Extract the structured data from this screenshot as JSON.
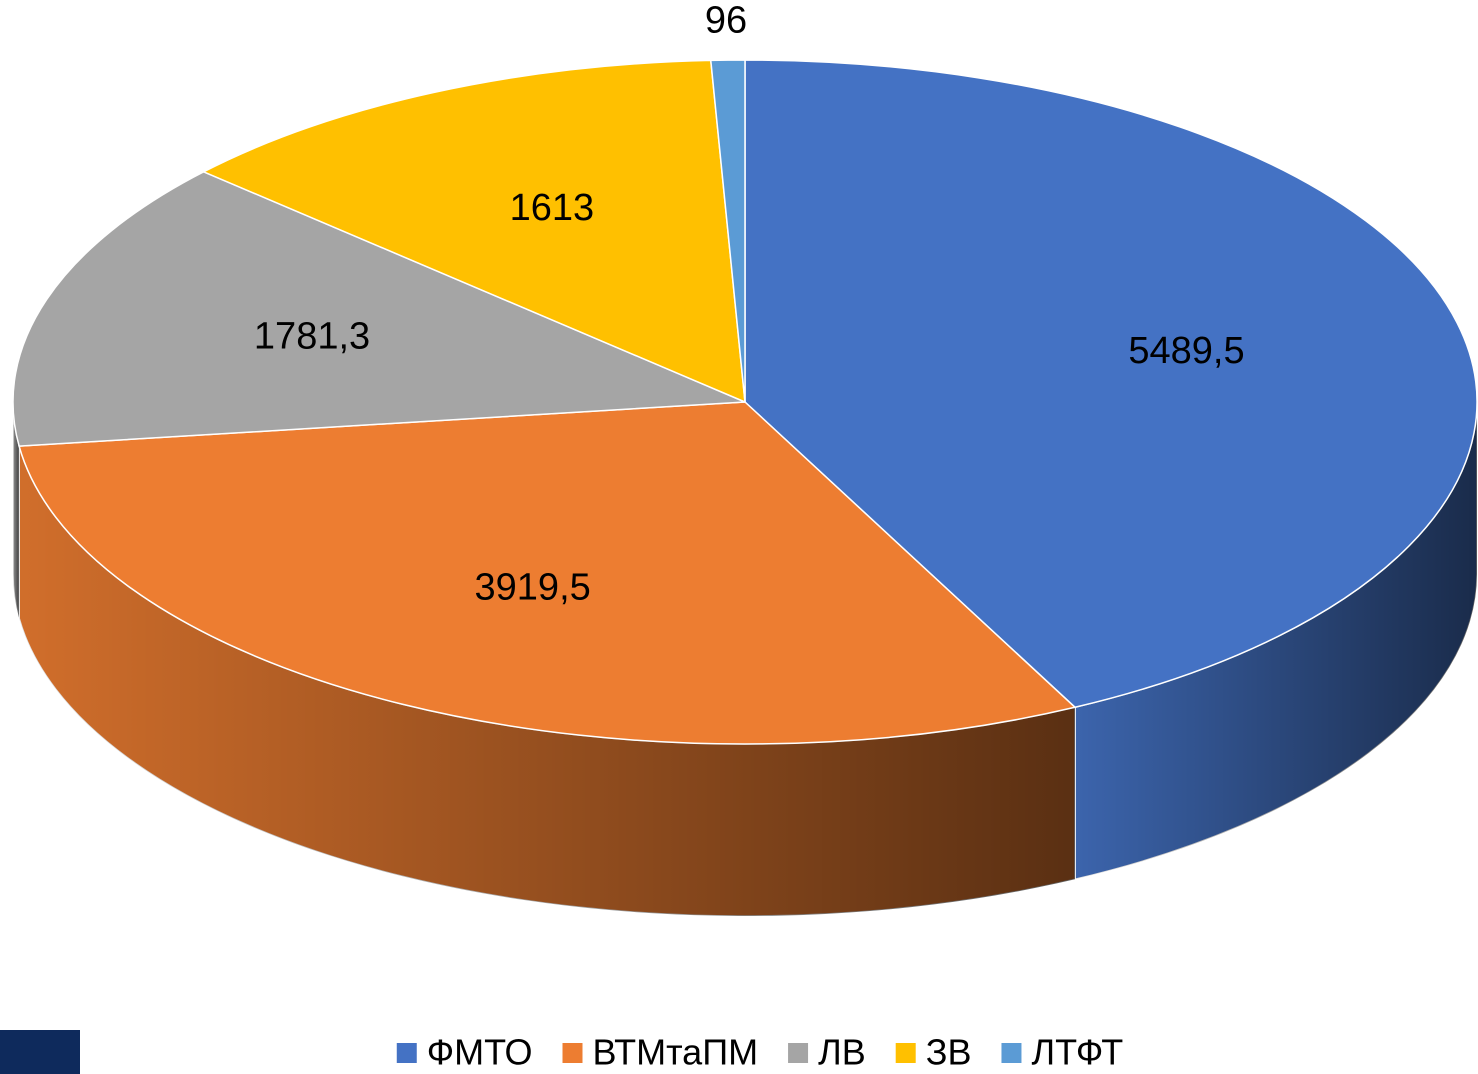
{
  "chart_data": {
    "type": "pie",
    "categories": [
      "ФМТО",
      "ВТМтаПМ",
      "ЛВ",
      "ЗВ",
      "ЛТФТ"
    ],
    "values": [
      5489.5,
      3919.5,
      1781.3,
      1613,
      96
    ],
    "value_labels": [
      "5489,5",
      "3919,5",
      "1781,3",
      "1613",
      "96"
    ],
    "colors": [
      "#4472c4",
      "#ed7d31",
      "#a5a5a5",
      "#ffc000",
      "#5b9bd5"
    ],
    "legend": "bottom"
  }
}
